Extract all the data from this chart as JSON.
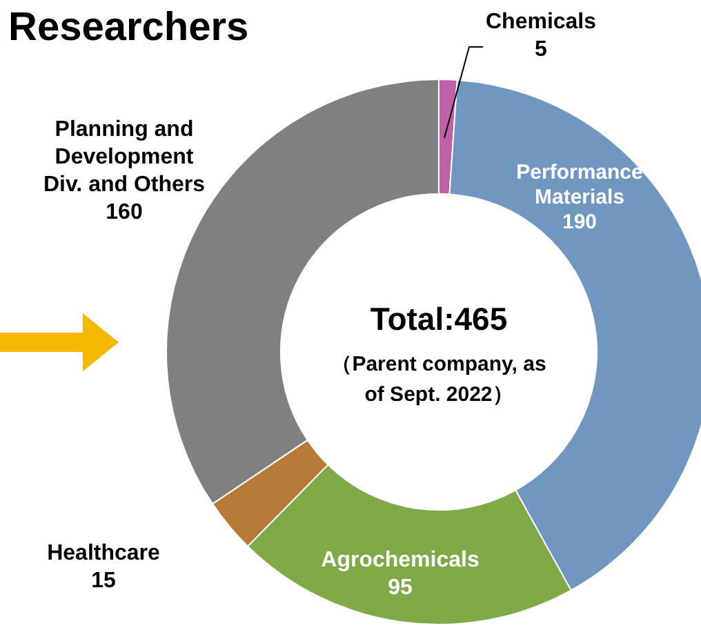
{
  "chart_data": {
    "type": "donut",
    "title": "Researchers",
    "categories": [
      "Chemicals",
      "Performance Materials",
      "Agrochemicals",
      "Healthcare",
      "Planning and Development Div. and Others"
    ],
    "values": [
      5,
      190,
      95,
      15,
      160
    ],
    "colors": [
      "#c060a8",
      "#7097c0",
      "#80aa48",
      "#b87a38",
      "#808080"
    ],
    "data_labels": true,
    "legend": false,
    "annotations": [
      "Total:465",
      "（Parent company, as of Sept. 2022）"
    ]
  }
}
